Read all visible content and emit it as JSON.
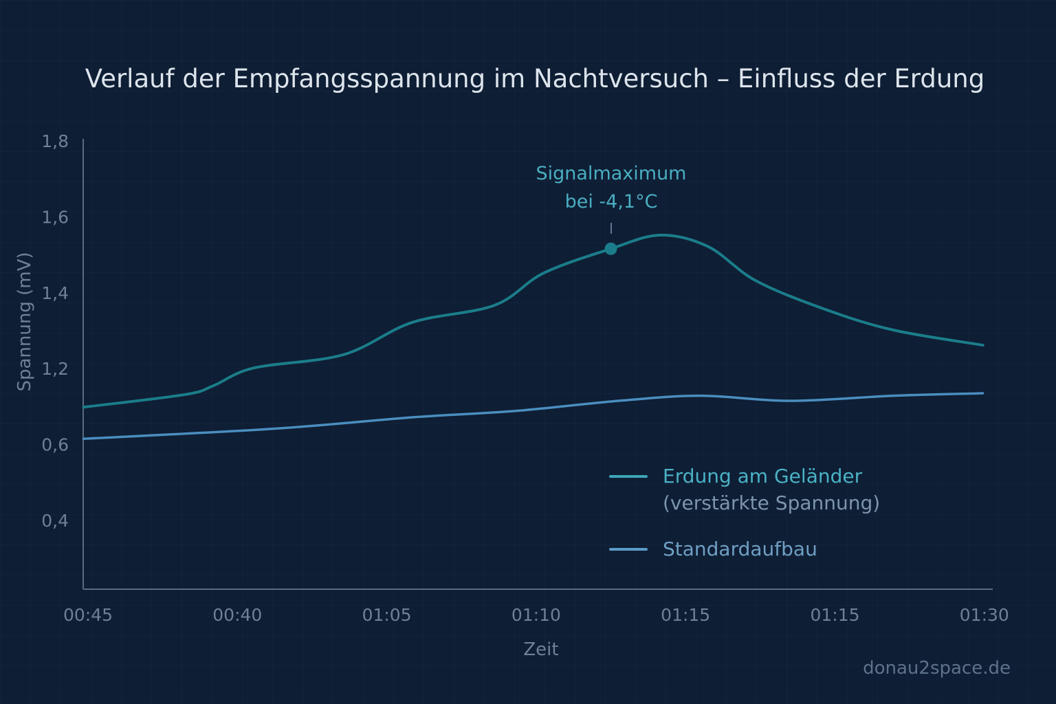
{
  "chart_data": {
    "type": "line",
    "title": "Verlauf der Empfangsspannung im Nachtversuch – Einfluss der Erdung",
    "xlabel": "Zeit",
    "ylabel": "Spannung (mV)",
    "x_tick_labels": [
      "00:45",
      "00:40",
      "01:05",
      "01:10",
      "01:15",
      "01:15",
      "01:30"
    ],
    "y_tick_labels": [
      "0,4",
      "0,6",
      "1,2",
      "1,4",
      "1,6",
      "1,8"
    ],
    "y_tick_values": [
      0.4,
      0.6,
      1.2,
      1.4,
      1.6,
      1.8
    ],
    "x_note": "x values are positions in tick-index units (0 = first tick label, 6 = last)",
    "grid": false,
    "legend_position": "bottom-right",
    "series": [
      {
        "name": "Erdung am Geländer",
        "sub": "(verstärkte Spannung)",
        "color": "#1b7d8b",
        "x": [
          -0.03,
          0.65,
          0.84,
          1.11,
          1.71,
          2.17,
          2.72,
          3.05,
          3.5,
          3.83,
          4.15,
          4.47,
          4.93,
          5.39,
          5.99
        ],
        "y": [
          0.89,
          0.99,
          1.06,
          1.2,
          1.235,
          1.32,
          1.365,
          1.45,
          1.514,
          1.55,
          1.52,
          1.43,
          1.355,
          1.3,
          1.26
        ]
      },
      {
        "name": "Standardaufbau",
        "color": "#4a8ec0",
        "x": [
          -0.03,
          1.25,
          2.17,
          2.86,
          3.55,
          4.1,
          4.7,
          5.39,
          5.99
        ],
        "y": [
          0.64,
          0.72,
          0.81,
          0.86,
          0.94,
          0.98,
          0.94,
          0.98,
          1.0
        ]
      }
    ],
    "annotation": {
      "line1": "Signalmaximum",
      "line2": "bei -4,1°C",
      "x": 3.5,
      "y": 1.514,
      "color": "#4aaec2"
    }
  },
  "watermark": "donau2space.de"
}
